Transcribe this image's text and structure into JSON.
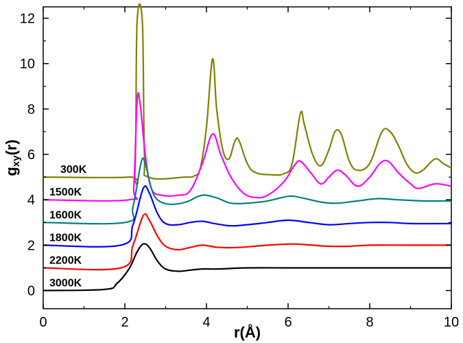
{
  "chart_data": {
    "type": "line",
    "title": "",
    "xlabel": "r(Å)",
    "ylabel_main": "g",
    "ylabel_sub": "xy",
    "ylabel_tail": "(r)",
    "xlim": [
      0,
      10
    ],
    "ylim": [
      -0.8,
      12.5
    ],
    "xticks": [
      0,
      2,
      4,
      6,
      8,
      10
    ],
    "yticks": [
      0,
      2,
      4,
      6,
      8,
      10,
      12
    ],
    "grid": false,
    "series": [
      {
        "name": "300K",
        "color": "#808000",
        "points": [
          [
            0,
            5
          ],
          [
            2.1,
            5
          ],
          [
            2.25,
            5.3
          ],
          [
            2.3,
            11.8
          ],
          [
            2.43,
            11.8
          ],
          [
            2.48,
            6
          ],
          [
            2.58,
            5
          ],
          [
            3.5,
            5
          ],
          [
            3.7,
            5.05
          ],
          [
            3.85,
            5.4
          ],
          [
            4.0,
            7.2
          ],
          [
            4.15,
            10.2
          ],
          [
            4.25,
            8
          ],
          [
            4.4,
            6.2
          ],
          [
            4.55,
            5.8
          ],
          [
            4.7,
            6.6
          ],
          [
            4.8,
            6.6
          ],
          [
            5.0,
            5.6
          ],
          [
            5.2,
            5.2
          ],
          [
            5.6,
            5.1
          ],
          [
            5.9,
            5.15
          ],
          [
            6.1,
            5.6
          ],
          [
            6.3,
            7.8
          ],
          [
            6.4,
            7.3
          ],
          [
            6.6,
            6.0
          ],
          [
            6.8,
            5.5
          ],
          [
            7.0,
            6.2
          ],
          [
            7.15,
            7.0
          ],
          [
            7.3,
            6.9
          ],
          [
            7.5,
            5.7
          ],
          [
            7.7,
            5.3
          ],
          [
            8.0,
            5.6
          ],
          [
            8.3,
            7.0
          ],
          [
            8.5,
            7.0
          ],
          [
            8.7,
            6.4
          ],
          [
            8.9,
            5.6
          ],
          [
            9.1,
            5.2
          ],
          [
            9.3,
            5.3
          ],
          [
            9.6,
            5.8
          ],
          [
            9.8,
            5.6
          ],
          [
            10,
            5.4
          ]
        ]
      },
      {
        "name": "1500K",
        "color": "#ff00ff",
        "points": [
          [
            0,
            4
          ],
          [
            2.1,
            4
          ],
          [
            2.22,
            4.6
          ],
          [
            2.3,
            8.3
          ],
          [
            2.37,
            8.3
          ],
          [
            2.5,
            6
          ],
          [
            2.65,
            4.5
          ],
          [
            2.9,
            4.2
          ],
          [
            3.3,
            4.2
          ],
          [
            3.6,
            4.4
          ],
          [
            3.9,
            5.6
          ],
          [
            4.15,
            6.9
          ],
          [
            4.35,
            6.0
          ],
          [
            4.6,
            5.0
          ],
          [
            4.9,
            4.3
          ],
          [
            5.2,
            4.1
          ],
          [
            5.5,
            4.2
          ],
          [
            5.9,
            4.8
          ],
          [
            6.15,
            5.5
          ],
          [
            6.3,
            5.7
          ],
          [
            6.55,
            5.2
          ],
          [
            6.8,
            4.7
          ],
          [
            7.0,
            5.0
          ],
          [
            7.2,
            5.3
          ],
          [
            7.4,
            5.1
          ],
          [
            7.7,
            4.6
          ],
          [
            8.0,
            5.0
          ],
          [
            8.25,
            5.6
          ],
          [
            8.45,
            5.7
          ],
          [
            8.7,
            5.2
          ],
          [
            9.0,
            4.7
          ],
          [
            9.2,
            4.5
          ],
          [
            9.6,
            4.7
          ],
          [
            10,
            4.6
          ]
        ]
      },
      {
        "name": "1600K",
        "color": "#008080",
        "points": [
          [
            0,
            3
          ],
          [
            2.0,
            3
          ],
          [
            2.2,
            3.7
          ],
          [
            2.4,
            5.65
          ],
          [
            2.5,
            5.6
          ],
          [
            2.65,
            4.5
          ],
          [
            2.8,
            4.0
          ],
          [
            3.1,
            3.8
          ],
          [
            3.5,
            3.9
          ],
          [
            3.8,
            4.15
          ],
          [
            4.0,
            4.2
          ],
          [
            4.3,
            4.05
          ],
          [
            4.6,
            3.85
          ],
          [
            5.0,
            3.85
          ],
          [
            5.5,
            3.95
          ],
          [
            6.0,
            4.15
          ],
          [
            6.3,
            4.1
          ],
          [
            6.8,
            3.9
          ],
          [
            7.2,
            3.85
          ],
          [
            7.7,
            3.95
          ],
          [
            8.2,
            4.05
          ],
          [
            8.7,
            4.0
          ],
          [
            9.3,
            3.95
          ],
          [
            10,
            3.95
          ]
        ]
      },
      {
        "name": "1800K",
        "color": "#0000ff",
        "points": [
          [
            0,
            2
          ],
          [
            1.9,
            2
          ],
          [
            2.2,
            2.9
          ],
          [
            2.45,
            4.5
          ],
          [
            2.6,
            4.3
          ],
          [
            2.8,
            3.4
          ],
          [
            3.0,
            2.95
          ],
          [
            3.3,
            2.9
          ],
          [
            3.6,
            3.0
          ],
          [
            3.9,
            3.05
          ],
          [
            4.2,
            2.95
          ],
          [
            4.6,
            2.85
          ],
          [
            5.0,
            2.9
          ],
          [
            5.5,
            3.0
          ],
          [
            6.0,
            3.1
          ],
          [
            6.5,
            3.0
          ],
          [
            7.0,
            2.9
          ],
          [
            7.5,
            2.95
          ],
          [
            8.0,
            3.0
          ],
          [
            8.5,
            3.0
          ],
          [
            9.0,
            2.95
          ],
          [
            10,
            2.95
          ]
        ]
      },
      {
        "name": "2200K",
        "color": "#ff0000",
        "points": [
          [
            0,
            1
          ],
          [
            1.9,
            1
          ],
          [
            2.2,
            2.0
          ],
          [
            2.45,
            3.3
          ],
          [
            2.6,
            3.1
          ],
          [
            2.8,
            2.4
          ],
          [
            3.0,
            1.95
          ],
          [
            3.3,
            1.8
          ],
          [
            3.6,
            1.9
          ],
          [
            3.9,
            2.0
          ],
          [
            4.3,
            1.9
          ],
          [
            4.8,
            1.9
          ],
          [
            5.5,
            2.0
          ],
          [
            6.1,
            2.05
          ],
          [
            6.6,
            2.0
          ],
          [
            7.0,
            1.95
          ],
          [
            7.5,
            1.95
          ],
          [
            8.0,
            2.0
          ],
          [
            9.0,
            2.0
          ],
          [
            10,
            2.0
          ]
        ]
      },
      {
        "name": "3000K",
        "color": "#000000",
        "points": [
          [
            0,
            0
          ],
          [
            1.5,
            0.05
          ],
          [
            1.8,
            0.3
          ],
          [
            2.1,
            0.95
          ],
          [
            2.3,
            1.7
          ],
          [
            2.45,
            2.05
          ],
          [
            2.6,
            1.9
          ],
          [
            2.8,
            1.3
          ],
          [
            3.0,
            0.95
          ],
          [
            3.3,
            0.85
          ],
          [
            3.6,
            0.9
          ],
          [
            3.9,
            0.95
          ],
          [
            4.3,
            0.95
          ],
          [
            5.0,
            1.0
          ],
          [
            6.0,
            1.0
          ],
          [
            7.0,
            1.0
          ],
          [
            8.0,
            1.0
          ],
          [
            9.0,
            1.0
          ],
          [
            10,
            1.0
          ]
        ]
      }
    ]
  }
}
